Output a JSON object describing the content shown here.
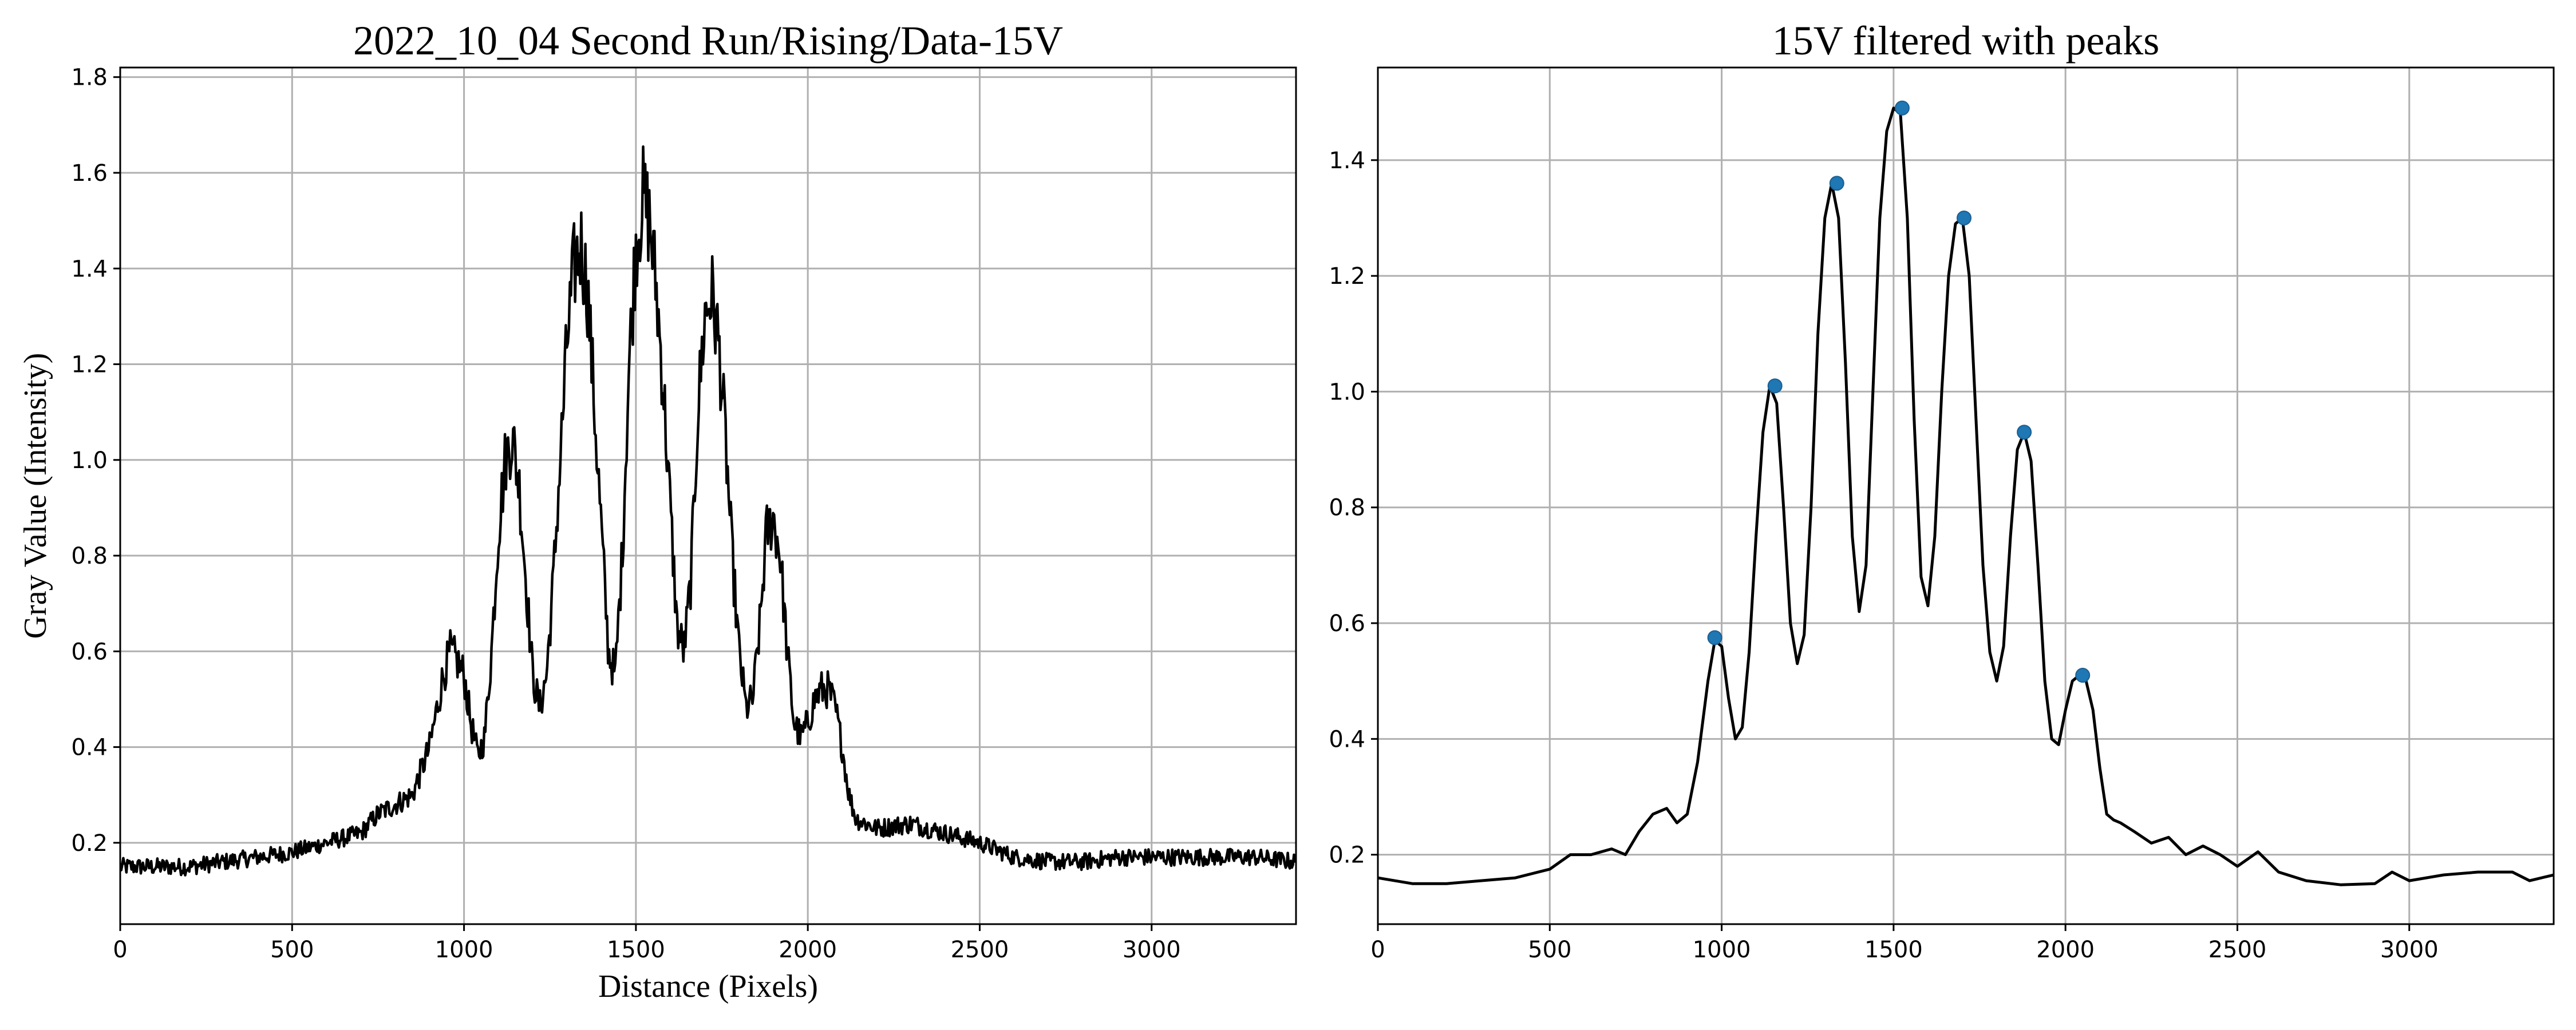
{
  "chart_data": [
    {
      "type": "line",
      "title": "2022_10_04 Second Run/Rising/Data-15V",
      "xlabel": "Distance (Pixels)",
      "ylabel": "Gray Value (Intensity)",
      "xlim": [
        0,
        3420
      ],
      "ylim": [
        0.03,
        1.82
      ],
      "xticks": [
        0,
        500,
        1000,
        1500,
        2000,
        2500,
        3000
      ],
      "yticks": [
        0.2,
        0.4,
        0.6,
        0.8,
        1.0,
        1.2,
        1.4,
        1.6,
        1.8
      ],
      "grid": true,
      "color": "#000000",
      "noisy": true,
      "series": [
        {
          "x": [
            0,
            100,
            200,
            300,
            400,
            500,
            600,
            700,
            750,
            800,
            850,
            900,
            940,
            960,
            980,
            1000,
            1020,
            1040,
            1060,
            1080,
            1100,
            1120,
            1140,
            1160,
            1180,
            1200,
            1220,
            1240,
            1260,
            1280,
            1300,
            1320,
            1340,
            1360,
            1380,
            1400,
            1420,
            1440,
            1460,
            1480,
            1500,
            1520,
            1540,
            1560,
            1580,
            1600,
            1620,
            1640,
            1660,
            1680,
            1700,
            1720,
            1740,
            1760,
            1780,
            1800,
            1820,
            1840,
            1860,
            1880,
            1900,
            1920,
            1940,
            1960,
            1980,
            2000,
            2020,
            2040,
            2060,
            2080,
            2100,
            2120,
            2140,
            2200,
            2300,
            2400,
            2500,
            2600,
            2700,
            2800,
            2900,
            3000,
            3100,
            3200,
            3300,
            3420
          ],
          "y": [
            0.15,
            0.15,
            0.15,
            0.16,
            0.17,
            0.18,
            0.2,
            0.22,
            0.26,
            0.28,
            0.3,
            0.4,
            0.55,
            0.6,
            0.58,
            0.55,
            0.45,
            0.38,
            0.42,
            0.6,
            0.85,
            1.0,
            1.05,
            0.95,
            0.75,
            0.55,
            0.48,
            0.55,
            0.75,
            1.0,
            1.25,
            1.4,
            1.45,
            1.35,
            1.1,
            0.85,
            0.6,
            0.55,
            0.8,
            1.2,
            1.45,
            1.55,
            1.5,
            1.35,
            1.15,
            0.9,
            0.65,
            0.6,
            0.75,
            1.1,
            1.3,
            1.35,
            1.25,
            1.05,
            0.8,
            0.6,
            0.48,
            0.5,
            0.65,
            0.85,
            0.88,
            0.8,
            0.6,
            0.45,
            0.42,
            0.45,
            0.5,
            0.52,
            0.52,
            0.48,
            0.4,
            0.3,
            0.25,
            0.23,
            0.24,
            0.22,
            0.2,
            0.17,
            0.16,
            0.16,
            0.17,
            0.17,
            0.17,
            0.17,
            0.17,
            0.16
          ]
        }
      ]
    },
    {
      "type": "line",
      "title": "15V filtered with peaks",
      "xlim": [
        0,
        3420
      ],
      "ylim": [
        0.08,
        1.56
      ],
      "xticks": [
        0,
        500,
        1000,
        1500,
        2000,
        2500,
        3000
      ],
      "yticks": [
        0.2,
        0.4,
        0.6,
        0.8,
        1.0,
        1.2,
        1.4
      ],
      "grid": true,
      "color": "#000000",
      "noisy": false,
      "series": [
        {
          "x": [
            0,
            100,
            200,
            300,
            400,
            500,
            560,
            620,
            680,
            720,
            760,
            800,
            840,
            870,
            900,
            930,
            960,
            980,
            1000,
            1020,
            1040,
            1060,
            1080,
            1100,
            1120,
            1140,
            1160,
            1180,
            1200,
            1220,
            1240,
            1260,
            1280,
            1300,
            1320,
            1340,
            1360,
            1380,
            1400,
            1420,
            1440,
            1460,
            1480,
            1500,
            1520,
            1540,
            1560,
            1580,
            1600,
            1620,
            1640,
            1660,
            1680,
            1700,
            1720,
            1740,
            1760,
            1780,
            1800,
            1820,
            1840,
            1860,
            1880,
            1900,
            1920,
            1940,
            1960,
            1980,
            2000,
            2020,
            2040,
            2060,
            2080,
            2100,
            2120,
            2140,
            2160,
            2200,
            2250,
            2300,
            2350,
            2400,
            2450,
            2500,
            2560,
            2620,
            2700,
            2800,
            2900,
            2950,
            3000,
            3100,
            3200,
            3300,
            3350,
            3420
          ],
          "y": [
            0.16,
            0.15,
            0.15,
            0.155,
            0.16,
            0.175,
            0.2,
            0.2,
            0.21,
            0.2,
            0.24,
            0.27,
            0.28,
            0.255,
            0.27,
            0.36,
            0.5,
            0.57,
            0.56,
            0.47,
            0.4,
            0.42,
            0.55,
            0.75,
            0.93,
            1.01,
            0.98,
            0.8,
            0.6,
            0.53,
            0.58,
            0.8,
            1.1,
            1.3,
            1.36,
            1.3,
            1.05,
            0.75,
            0.62,
            0.7,
            1.0,
            1.3,
            1.45,
            1.49,
            1.48,
            1.3,
            0.95,
            0.68,
            0.63,
            0.75,
            1.0,
            1.2,
            1.29,
            1.3,
            1.2,
            0.95,
            0.7,
            0.55,
            0.5,
            0.56,
            0.75,
            0.9,
            0.93,
            0.88,
            0.7,
            0.5,
            0.4,
            0.39,
            0.45,
            0.5,
            0.51,
            0.5,
            0.45,
            0.35,
            0.27,
            0.26,
            0.255,
            0.24,
            0.22,
            0.23,
            0.2,
            0.215,
            0.2,
            0.18,
            0.205,
            0.17,
            0.155,
            0.148,
            0.15,
            0.17,
            0.155,
            0.165,
            0.17,
            0.17,
            0.155,
            0.165
          ]
        }
      ],
      "peaks": {
        "x": [
          980,
          1155,
          1335,
          1525,
          1705,
          1880,
          2050
        ],
        "y": [
          0.575,
          1.01,
          1.36,
          1.49,
          1.3,
          0.93,
          0.51
        ]
      }
    }
  ]
}
